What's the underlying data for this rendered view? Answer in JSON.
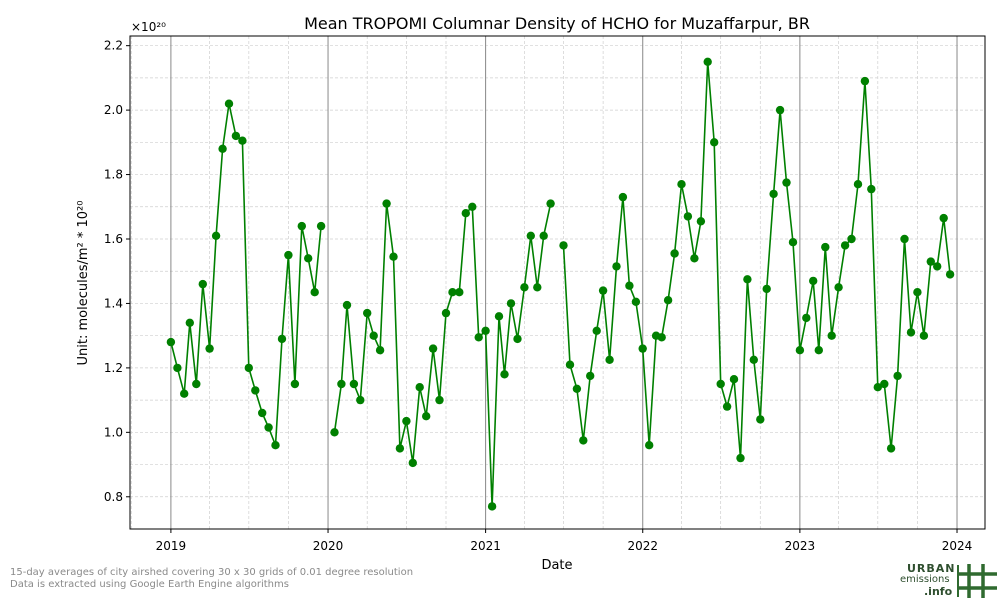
{
  "chart_data": {
    "type": "line",
    "title": "Mean TROPOMI Columnar Density of HCHO for Muzaffarpur, BR",
    "xlabel": "Date",
    "ylabel": "Unit: molecules/m² * 10²⁰",
    "y_multiplier_label": "×10²⁰",
    "xlim": [
      "2018-09-28",
      "2024-03-06"
    ],
    "ylim": [
      0.7,
      2.23
    ],
    "x_ticks": [
      "2019",
      "2020",
      "2021",
      "2022",
      "2023",
      "2024"
    ],
    "y_ticks": [
      "0.8",
      "1.0",
      "1.2",
      "1.4",
      "1.6",
      "1.8",
      "2.0",
      "2.2"
    ],
    "grid": true,
    "color": "#008000",
    "series": [
      {
        "segments": [
          [
            {
              "x": "2019-01-01",
              "y": 1.28
            },
            {
              "x": "2019-01-16",
              "y": 1.2
            },
            {
              "x": "2019-02-01",
              "y": 1.12
            },
            {
              "x": "2019-02-14",
              "y": 1.34
            },
            {
              "x": "2019-03-01",
              "y": 1.15
            },
            {
              "x": "2019-03-16",
              "y": 1.46
            },
            {
              "x": "2019-04-01",
              "y": 1.26
            },
            {
              "x": "2019-04-16",
              "y": 1.61
            },
            {
              "x": "2019-05-01",
              "y": 1.88
            },
            {
              "x": "2019-05-16",
              "y": 2.02
            },
            {
              "x": "2019-06-01",
              "y": 1.92
            },
            {
              "x": "2019-06-16",
              "y": 1.905
            },
            {
              "x": "2019-07-01",
              "y": 1.2
            },
            {
              "x": "2019-07-16",
              "y": 1.13
            },
            {
              "x": "2019-08-01",
              "y": 1.06
            },
            {
              "x": "2019-08-16",
              "y": 1.015
            },
            {
              "x": "2019-09-01",
              "y": 0.96
            },
            {
              "x": "2019-09-16",
              "y": 1.29
            },
            {
              "x": "2019-10-01",
              "y": 1.55
            },
            {
              "x": "2019-10-16",
              "y": 1.15
            },
            {
              "x": "2019-11-01",
              "y": 1.64
            },
            {
              "x": "2019-11-16",
              "y": 1.54
            },
            {
              "x": "2019-12-01",
              "y": 1.435
            },
            {
              "x": "2019-12-16",
              "y": 1.64
            }
          ],
          [
            {
              "x": "2020-01-16",
              "y": 1.0
            },
            {
              "x": "2020-02-01",
              "y": 1.15
            },
            {
              "x": "2020-02-14",
              "y": 1.395
            },
            {
              "x": "2020-03-01",
              "y": 1.15
            },
            {
              "x": "2020-03-16",
              "y": 1.1
            },
            {
              "x": "2020-04-01",
              "y": 1.37
            },
            {
              "x": "2020-04-16",
              "y": 1.3
            },
            {
              "x": "2020-05-01",
              "y": 1.255
            },
            {
              "x": "2020-05-16",
              "y": 1.71
            },
            {
              "x": "2020-06-01",
              "y": 1.545
            },
            {
              "x": "2020-06-16",
              "y": 0.95
            },
            {
              "x": "2020-07-01",
              "y": 1.035
            },
            {
              "x": "2020-07-16",
              "y": 0.905
            },
            {
              "x": "2020-08-01",
              "y": 1.14
            },
            {
              "x": "2020-08-16",
              "y": 1.05
            },
            {
              "x": "2020-09-01",
              "y": 1.26
            },
            {
              "x": "2020-09-16",
              "y": 1.1
            },
            {
              "x": "2020-10-01",
              "y": 1.37
            },
            {
              "x": "2020-10-16",
              "y": 1.435
            },
            {
              "x": "2020-11-01",
              "y": 1.435
            },
            {
              "x": "2020-11-16",
              "y": 1.68
            },
            {
              "x": "2020-12-01",
              "y": 1.7
            },
            {
              "x": "2020-12-16",
              "y": 1.295
            },
            {
              "x": "2021-01-01",
              "y": 1.315
            },
            {
              "x": "2021-01-16",
              "y": 0.77
            },
            {
              "x": "2021-02-01",
              "y": 1.36
            },
            {
              "x": "2021-02-14",
              "y": 1.18
            },
            {
              "x": "2021-03-01",
              "y": 1.4
            },
            {
              "x": "2021-03-16",
              "y": 1.29
            },
            {
              "x": "2021-04-01",
              "y": 1.45
            },
            {
              "x": "2021-04-16",
              "y": 1.61
            },
            {
              "x": "2021-05-01",
              "y": 1.45
            },
            {
              "x": "2021-05-16",
              "y": 1.61
            },
            {
              "x": "2021-06-01",
              "y": 1.71
            }
          ],
          [
            {
              "x": "2021-07-01",
              "y": 1.58
            },
            {
              "x": "2021-07-16",
              "y": 1.21
            },
            {
              "x": "2021-08-01",
              "y": 1.135
            },
            {
              "x": "2021-08-16",
              "y": 0.975
            },
            {
              "x": "2021-09-01",
              "y": 1.175
            },
            {
              "x": "2021-09-16",
              "y": 1.315
            },
            {
              "x": "2021-10-01",
              "y": 1.44
            },
            {
              "x": "2021-10-16",
              "y": 1.225
            },
            {
              "x": "2021-11-01",
              "y": 1.515
            },
            {
              "x": "2021-11-16",
              "y": 1.73
            },
            {
              "x": "2021-12-01",
              "y": 1.455
            },
            {
              "x": "2021-12-16",
              "y": 1.405
            },
            {
              "x": "2022-01-01",
              "y": 1.26
            },
            {
              "x": "2022-01-16",
              "y": 0.96
            },
            {
              "x": "2022-02-01",
              "y": 1.3
            },
            {
              "x": "2022-02-14",
              "y": 1.295
            },
            {
              "x": "2022-03-01",
              "y": 1.41
            },
            {
              "x": "2022-03-16",
              "y": 1.555
            },
            {
              "x": "2022-04-01",
              "y": 1.77
            },
            {
              "x": "2022-04-16",
              "y": 1.67
            },
            {
              "x": "2022-05-01",
              "y": 1.54
            },
            {
              "x": "2022-05-16",
              "y": 1.655
            },
            {
              "x": "2022-06-01",
              "y": 2.15
            },
            {
              "x": "2022-06-16",
              "y": 1.9
            },
            {
              "x": "2022-07-01",
              "y": 1.15
            },
            {
              "x": "2022-07-16",
              "y": 1.08
            },
            {
              "x": "2022-08-01",
              "y": 1.165
            },
            {
              "x": "2022-08-16",
              "y": 0.92
            },
            {
              "x": "2022-09-01",
              "y": 1.475
            },
            {
              "x": "2022-09-16",
              "y": 1.225
            },
            {
              "x": "2022-10-01",
              "y": 1.04
            },
            {
              "x": "2022-10-16",
              "y": 1.445
            },
            {
              "x": "2022-11-01",
              "y": 1.74
            },
            {
              "x": "2022-11-16",
              "y": 2.0
            },
            {
              "x": "2022-12-01",
              "y": 1.775
            },
            {
              "x": "2022-12-16",
              "y": 1.59
            },
            {
              "x": "2023-01-01",
              "y": 1.255
            },
            {
              "x": "2023-01-16",
              "y": 1.355
            },
            {
              "x": "2023-02-01",
              "y": 1.47
            },
            {
              "x": "2023-02-14",
              "y": 1.255
            },
            {
              "x": "2023-03-01",
              "y": 1.575
            },
            {
              "x": "2023-03-16",
              "y": 1.3
            },
            {
              "x": "2023-04-01",
              "y": 1.45
            },
            {
              "x": "2023-04-16",
              "y": 1.58
            },
            {
              "x": "2023-05-01",
              "y": 1.6
            },
            {
              "x": "2023-05-16",
              "y": 1.77
            },
            {
              "x": "2023-06-01",
              "y": 2.09
            },
            {
              "x": "2023-06-16",
              "y": 1.755
            },
            {
              "x": "2023-07-01",
              "y": 1.14
            },
            {
              "x": "2023-07-16",
              "y": 1.15
            },
            {
              "x": "2023-08-01",
              "y": 0.95
            },
            {
              "x": "2023-08-16",
              "y": 1.175
            },
            {
              "x": "2023-09-01",
              "y": 1.6
            },
            {
              "x": "2023-09-16",
              "y": 1.31
            },
            {
              "x": "2023-10-01",
              "y": 1.435
            },
            {
              "x": "2023-10-16",
              "y": 1.3
            },
            {
              "x": "2023-11-01",
              "y": 1.53
            },
            {
              "x": "2023-11-16",
              "y": 1.515
            },
            {
              "x": "2023-12-01",
              "y": 1.665
            },
            {
              "x": "2023-12-16",
              "y": 1.49
            }
          ]
        ]
      }
    ]
  },
  "footnote": {
    "line1": "15-day averages of city airshed covering 30 x 30 grids of 0.01 degree resolution",
    "line2": "Data is extracted using Google Earth Engine algorithms"
  },
  "logo": {
    "word1": "URBAN",
    "word2": "emissions",
    "word3": ".info"
  }
}
